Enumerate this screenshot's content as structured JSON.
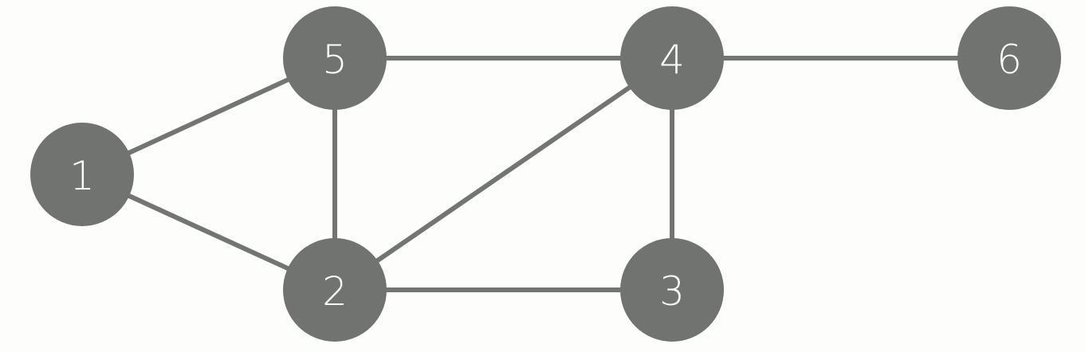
{
  "colors": {
    "background": "#fdfdfc",
    "node_fill": "#707370",
    "edge_stroke": "#727572",
    "label_text": "#ffffff"
  },
  "graph": {
    "nodes": [
      {
        "id": "1",
        "label": "1"
      },
      {
        "id": "2",
        "label": "2"
      },
      {
        "id": "3",
        "label": "3"
      },
      {
        "id": "4",
        "label": "4"
      },
      {
        "id": "5",
        "label": "5"
      },
      {
        "id": "6",
        "label": "6"
      }
    ],
    "edges": [
      {
        "from": "1",
        "to": "5"
      },
      {
        "from": "1",
        "to": "2"
      },
      {
        "from": "5",
        "to": "4"
      },
      {
        "from": "5",
        "to": "2"
      },
      {
        "from": "2",
        "to": "4"
      },
      {
        "from": "2",
        "to": "3"
      },
      {
        "from": "4",
        "to": "3"
      },
      {
        "from": "4",
        "to": "6"
      }
    ]
  }
}
